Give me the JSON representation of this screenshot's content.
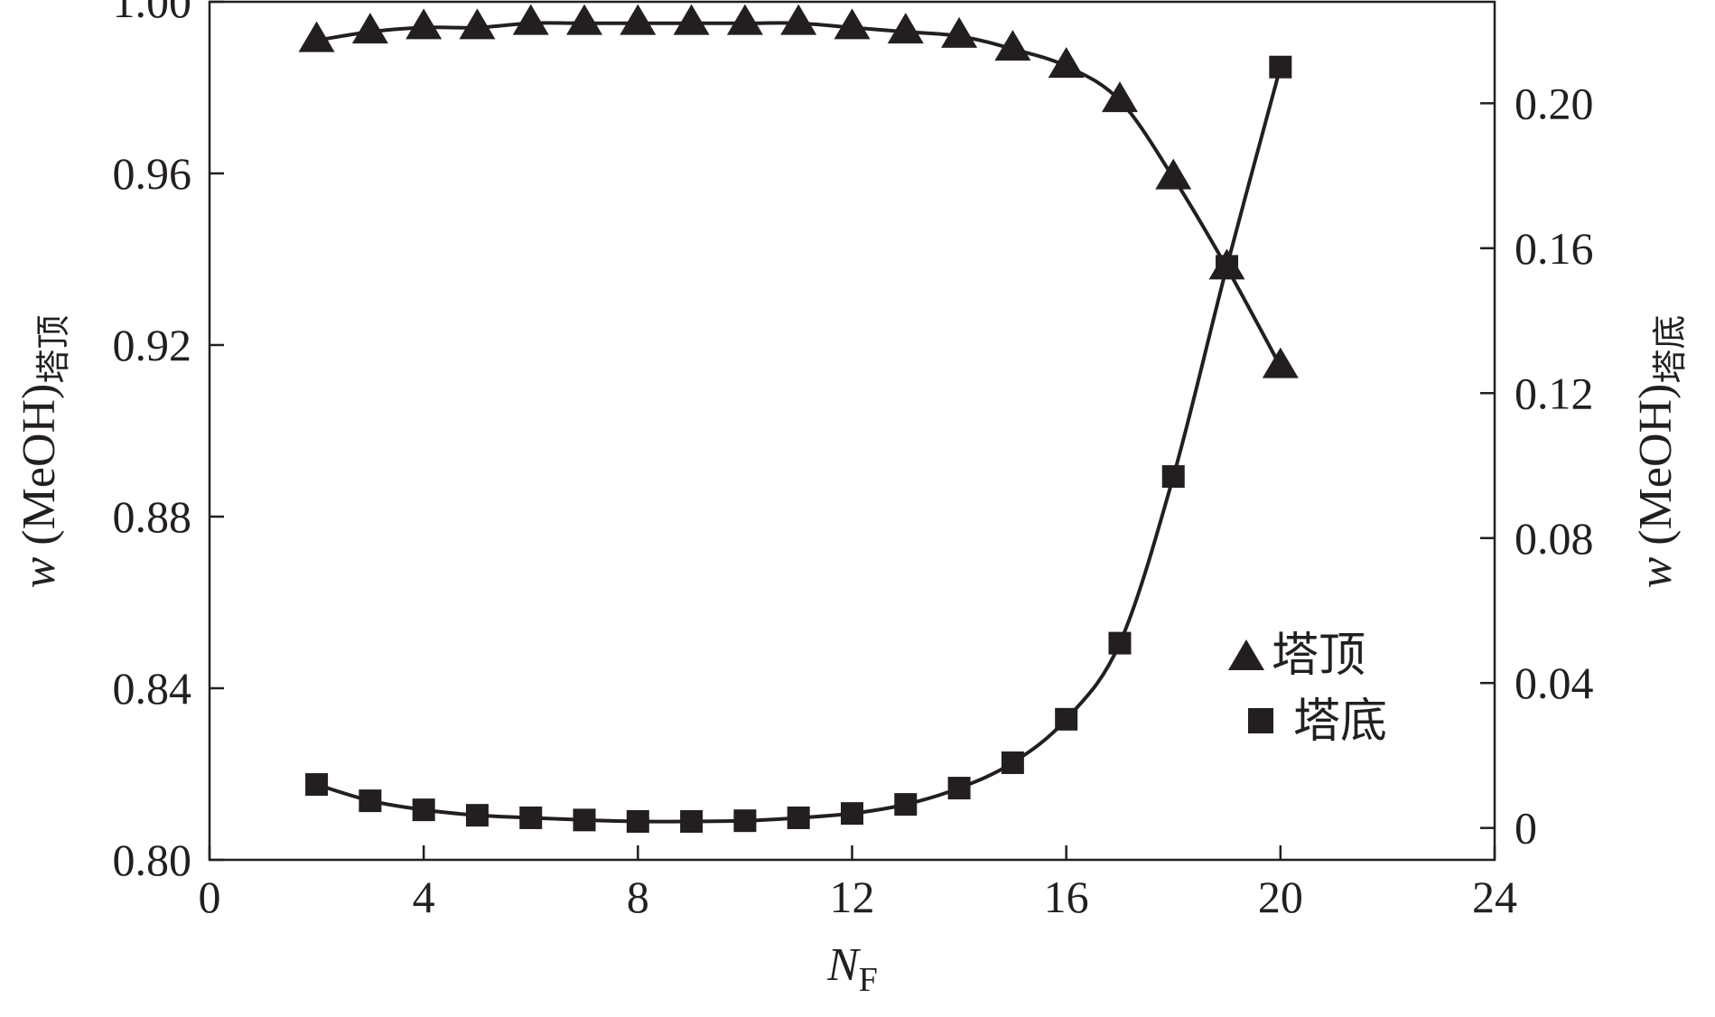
{
  "chart_data": {
    "type": "line",
    "title": "",
    "xlabel": "N",
    "xlabel_sub": "F",
    "ylabel_left": {
      "prefix": "w",
      "main": "(MeOH)",
      "sub": "塔顶"
    },
    "ylabel_right": {
      "prefix": "w",
      "main": "(MeOH)",
      "sub": "塔底"
    },
    "xlim": [
      0,
      24
    ],
    "ylim_left": [
      0.8,
      1.0
    ],
    "ylim_right": [
      -0.0088,
      0.228
    ],
    "x_ticks": [
      "0",
      "4",
      "8",
      "12",
      "16",
      "20",
      "24"
    ],
    "y_left_ticks": [
      "0.80",
      "0.84",
      "0.88",
      "0.92",
      "0.96",
      "1.00"
    ],
    "y_right_ticks": [
      "0",
      "0.04",
      "0.08",
      "0.12",
      "0.16",
      "0.20"
    ],
    "grid": false,
    "legend_position": "lower-right inside plot",
    "x": [
      2,
      3,
      4,
      5,
      6,
      7,
      8,
      9,
      10,
      11,
      12,
      13,
      14,
      15,
      16,
      17,
      18,
      19,
      20
    ],
    "series": [
      {
        "name": "塔顶",
        "axis": "left",
        "marker": "triangle",
        "values": [
          0.991,
          0.993,
          0.994,
          0.994,
          0.995,
          0.995,
          0.995,
          0.995,
          0.995,
          0.995,
          0.994,
          0.993,
          0.992,
          0.989,
          0.985,
          0.977,
          0.959,
          0.938,
          0.915
        ]
      },
      {
        "name": "塔底",
        "axis": "right",
        "marker": "square",
        "values": [
          0.012,
          0.0075,
          0.005,
          0.0035,
          0.0028,
          0.0022,
          0.0018,
          0.0018,
          0.002,
          0.0028,
          0.004,
          0.0065,
          0.011,
          0.018,
          0.03,
          0.051,
          0.097,
          0.155,
          0.21
        ]
      }
    ],
    "colors": {
      "ink": "#231f20",
      "background": "#ffffff"
    }
  }
}
